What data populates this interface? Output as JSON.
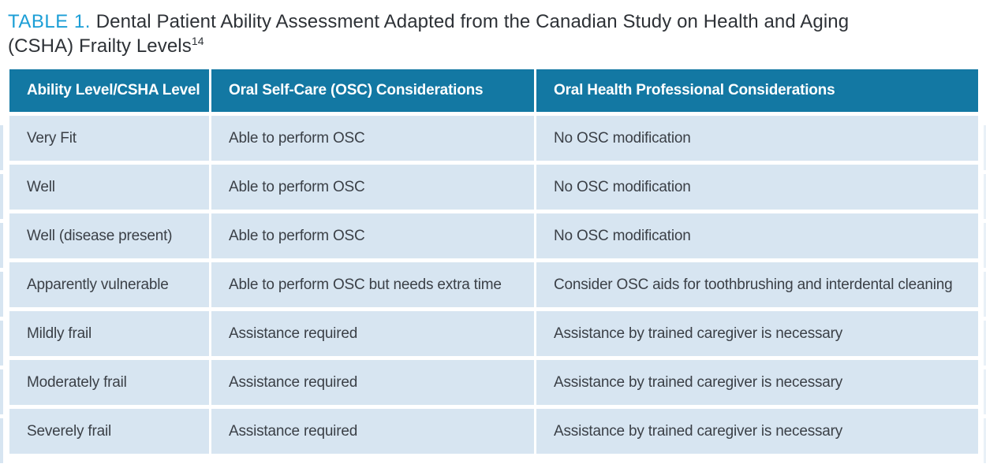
{
  "title": {
    "label": "TABLE 1.",
    "line1": "Dental Patient Ability Assessment Adapted from the Canadian Study on Health and Aging",
    "line2": "(CSHA) Frailty Levels",
    "citation": "14"
  },
  "colors": {
    "title_accent": "#1b9ed6",
    "title_text": "#2e3237",
    "header_bg": "#1378a3",
    "header_text": "#ffffff",
    "row_bg": "#d7e5f1",
    "cell_text": "#3b4047"
  },
  "table": {
    "columns": [
      "Ability Level/CSHA Level",
      "Oral Self-Care (OSC) Considerations",
      "Oral Health Professional Considerations"
    ],
    "rows": [
      [
        "Very Fit",
        "Able to perform OSC",
        "No OSC modification"
      ],
      [
        "Well",
        "Able to perform OSC",
        "No OSC modification"
      ],
      [
        "Well (disease present)",
        "Able to perform OSC",
        "No OSC modification"
      ],
      [
        "Apparently vulnerable",
        "Able to perform OSC but needs extra time",
        "Consider OSC aids for toothbrushing and interdental cleaning"
      ],
      [
        "Mildly frail",
        "Assistance required",
        "Assistance by trained caregiver is necessary"
      ],
      [
        "Moderately frail",
        "Assistance required",
        "Assistance by trained caregiver is necessary"
      ],
      [
        "Severely frail",
        "Assistance required",
        "Assistance by trained caregiver is necessary"
      ]
    ]
  }
}
